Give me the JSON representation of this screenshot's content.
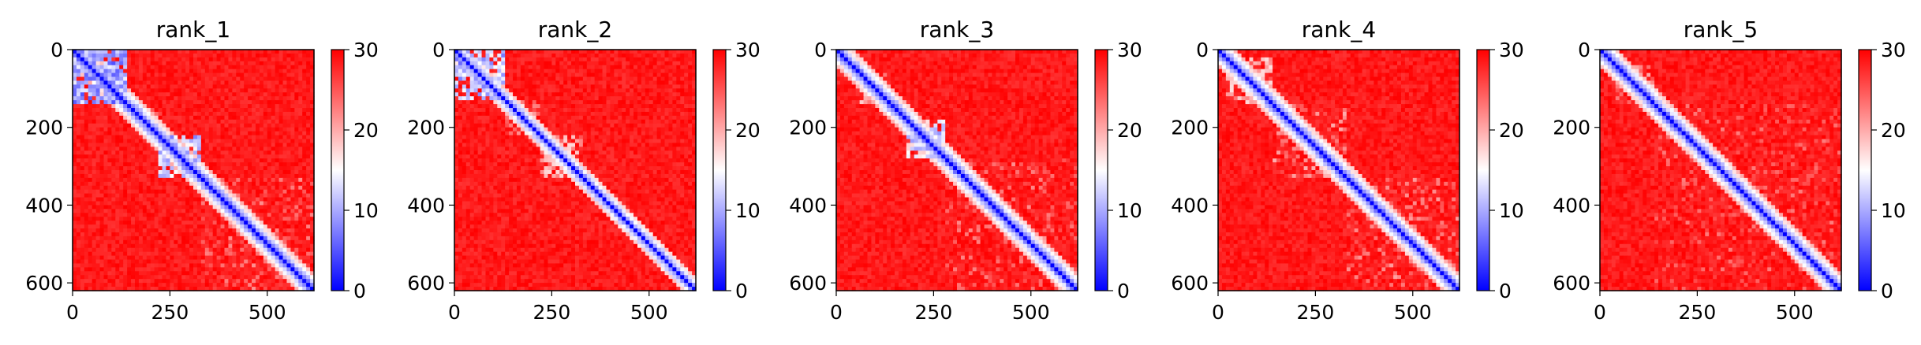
{
  "chart_data": [
    {
      "type": "heatmap",
      "title": "rank_1",
      "xlabel": "",
      "ylabel": "",
      "n": 620,
      "xlim": [
        0,
        620
      ],
      "ylim": [
        620,
        0
      ],
      "x_ticks": [
        0,
        250,
        500
      ],
      "y_ticks": [
        0,
        200,
        400,
        600
      ],
      "colorbar": {
        "ticks": [
          0,
          10,
          20,
          30
        ],
        "range": [
          0,
          30
        ],
        "colormap": "bwr"
      },
      "low_value_blocks": [
        {
          "range": [
            5,
            140
          ],
          "value": 7,
          "strength": 0.8
        },
        {
          "range": [
            150,
            230
          ],
          "value": 22,
          "strength": 0.5
        },
        {
          "range": [
            225,
            330
          ],
          "value": 10,
          "strength": 0.75
        },
        {
          "range": [
            330,
            620
          ],
          "value": 24,
          "strength": 0.35
        }
      ],
      "diagonal_band_width": 12,
      "background_value": 30
    },
    {
      "type": "heatmap",
      "title": "rank_2",
      "xlabel": "",
      "ylabel": "",
      "n": 620,
      "xlim": [
        0,
        620
      ],
      "ylim": [
        620,
        0
      ],
      "x_ticks": [
        0,
        250,
        500
      ],
      "y_ticks": [
        0,
        200,
        400,
        600
      ],
      "colorbar": {
        "ticks": [
          0,
          10,
          20,
          30
        ],
        "range": [
          0,
          30
        ],
        "colormap": "bwr"
      },
      "low_value_blocks": [
        {
          "range": [
            5,
            130
          ],
          "value": 9,
          "strength": 0.7
        },
        {
          "range": [
            130,
            220
          ],
          "value": 22,
          "strength": 0.4
        },
        {
          "range": [
            220,
            330
          ],
          "value": 18,
          "strength": 0.5
        }
      ],
      "diagonal_band_width": 10,
      "background_value": 30
    },
    {
      "type": "heatmap",
      "title": "rank_3",
      "xlabel": "",
      "ylabel": "",
      "n": 620,
      "xlim": [
        0,
        620
      ],
      "ylim": [
        620,
        0
      ],
      "x_ticks": [
        0,
        250,
        500
      ],
      "y_ticks": [
        0,
        200,
        400,
        600
      ],
      "colorbar": {
        "ticks": [
          0,
          10,
          20,
          30
        ],
        "range": [
          0,
          30
        ],
        "colormap": "bwr"
      },
      "low_value_blocks": [
        {
          "range": [
            60,
            140
          ],
          "value": 18,
          "strength": 0.5
        },
        {
          "range": [
            185,
            280
          ],
          "value": 11,
          "strength": 0.7
        },
        {
          "range": [
            280,
            620
          ],
          "value": 24,
          "strength": 0.3
        }
      ],
      "diagonal_band_width": 12,
      "background_value": 30
    },
    {
      "type": "heatmap",
      "title": "rank_4",
      "xlabel": "",
      "ylabel": "",
      "n": 620,
      "xlim": [
        0,
        620
      ],
      "ylim": [
        620,
        0
      ],
      "x_ticks": [
        0,
        250,
        500
      ],
      "y_ticks": [
        0,
        200,
        400,
        600
      ],
      "colorbar": {
        "ticks": [
          0,
          10,
          20,
          30
        ],
        "range": [
          0,
          30
        ],
        "colormap": "bwr"
      },
      "low_value_blocks": [
        {
          "range": [
            20,
            140
          ],
          "value": 18,
          "strength": 0.5
        },
        {
          "range": [
            140,
            330
          ],
          "value": 22,
          "strength": 0.4
        },
        {
          "range": [
            330,
            620
          ],
          "value": 23,
          "strength": 0.35
        }
      ],
      "diagonal_band_width": 12,
      "background_value": 30
    },
    {
      "type": "heatmap",
      "title": "rank_5",
      "xlabel": "",
      "ylabel": "",
      "n": 620,
      "xlim": [
        0,
        620
      ],
      "ylim": [
        620,
        0
      ],
      "x_ticks": [
        0,
        250,
        500
      ],
      "y_ticks": [
        0,
        200,
        400,
        600
      ],
      "colorbar": {
        "ticks": [
          0,
          10,
          20,
          30
        ],
        "range": [
          0,
          30
        ],
        "colormap": "bwr"
      },
      "low_value_blocks": [
        {
          "range": [
            40,
            140
          ],
          "value": 20,
          "strength": 0.45
        },
        {
          "range": [
            140,
            620
          ],
          "value": 25,
          "strength": 0.3
        }
      ],
      "diagonal_band_width": 12,
      "background_value": 30
    }
  ]
}
